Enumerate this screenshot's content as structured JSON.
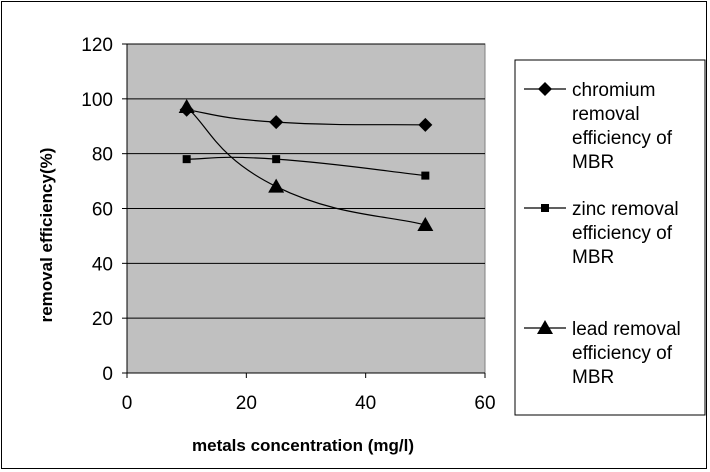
{
  "chart_data": {
    "type": "line",
    "title": "",
    "xlabel": "metals concentration (mg/l)",
    "ylabel": "removal efficiency(%)",
    "xlim": [
      0,
      60
    ],
    "ylim": [
      0,
      120
    ],
    "xticks": [
      "0",
      "20",
      "40",
      "60"
    ],
    "yticks": [
      "0",
      "20",
      "40",
      "60",
      "80",
      "100",
      "120"
    ],
    "grid": "horizontal",
    "plot_background": "#c0c0c0",
    "legend_position": "right",
    "series": [
      {
        "name": "chromium removal efficiency of MBR",
        "marker": "diamond",
        "x": [
          10,
          25,
          50
        ],
        "y": [
          96,
          91.5,
          90.5
        ]
      },
      {
        "name": "zinc removal efficiency of MBR",
        "marker": "square",
        "x": [
          10,
          25,
          50
        ],
        "y": [
          78,
          78,
          72
        ]
      },
      {
        "name": "lead removal efficiency of MBR",
        "marker": "triangle",
        "x": [
          10,
          25,
          50
        ],
        "y": [
          97,
          68,
          54
        ]
      }
    ],
    "legend_lines": [
      [
        "chromium",
        "removal",
        "efficiency of",
        "MBR"
      ],
      [
        "zinc removal",
        "efficiency of",
        "MBR"
      ],
      [
        "lead removal",
        "efficiency of",
        "MBR"
      ]
    ]
  }
}
